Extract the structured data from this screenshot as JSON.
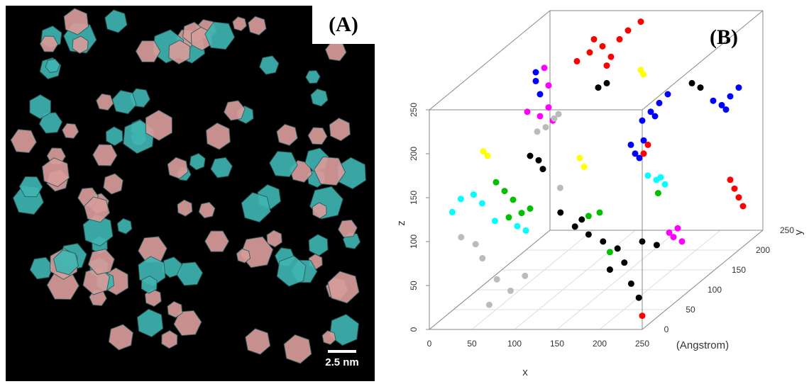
{
  "panel_a": {
    "label": "(A)",
    "scale_bar": "2.5 nm"
  },
  "panel_b": {
    "label": "(B)",
    "type": "scatter3d",
    "x_label": "x",
    "y_label": "y",
    "z_label": "z",
    "unit_label": "(Angstrom)",
    "xlim": [
      0,
      250
    ],
    "ylim": [
      0,
      250
    ],
    "zlim": [
      0,
      250
    ],
    "xticks": [
      0,
      50,
      100,
      150,
      200,
      250
    ],
    "yticks": [
      0,
      50,
      100,
      150,
      200,
      250
    ],
    "zticks": [
      0,
      50,
      100,
      150,
      200,
      250
    ],
    "clusters": [
      {
        "color": "#ff0000",
        "points": [
          [
            60,
            200,
            215
          ],
          [
            75,
            200,
            225
          ],
          [
            90,
            200,
            232
          ],
          [
            100,
            200,
            220
          ],
          [
            110,
            200,
            240
          ],
          [
            120,
            200,
            250
          ],
          [
            135,
            200,
            260
          ],
          [
            95,
            200,
            210
          ],
          [
            80,
            200,
            240
          ]
        ]
      },
      {
        "color": "#000000",
        "points": [
          [
            85,
            200,
            185
          ],
          [
            95,
            200,
            190
          ]
        ]
      },
      {
        "color": "#ffff00",
        "points": [
          [
            135,
            200,
            205
          ],
          [
            138,
            200,
            200
          ]
        ]
      },
      {
        "color": "#0000ff",
        "points": [
          [
            165,
            150,
            170
          ],
          [
            175,
            150,
            180
          ],
          [
            185,
            150,
            190
          ],
          [
            195,
            150,
            200
          ],
          [
            180,
            150,
            175
          ]
        ]
      },
      {
        "color": "#0000ff",
        "points": [
          [
            220,
            200,
            170
          ],
          [
            230,
            200,
            165
          ],
          [
            240,
            200,
            175
          ],
          [
            250,
            200,
            185
          ],
          [
            235,
            200,
            160
          ]
        ]
      },
      {
        "color": "#000000",
        "points": [
          [
            195,
            200,
            190
          ],
          [
            205,
            200,
            185
          ]
        ]
      },
      {
        "color": "#0000ff",
        "points": [
          [
            180,
            100,
            165
          ],
          [
            185,
            100,
            155
          ],
          [
            190,
            100,
            150
          ],
          [
            195,
            100,
            170
          ]
        ]
      },
      {
        "color": "#ff0000",
        "points": [
          [
            200,
            100,
            165
          ],
          [
            195,
            100,
            155
          ]
        ]
      },
      {
        "color": "#00ffff",
        "points": [
          [
            200,
            100,
            130
          ],
          [
            210,
            100,
            125
          ],
          [
            220,
            100,
            120
          ],
          [
            215,
            100,
            128
          ]
        ]
      },
      {
        "color": "#00c000",
        "points": [
          [
            212,
            100,
            110
          ]
        ]
      },
      {
        "color": "#ff0000",
        "points": [
          [
            240,
            200,
            80
          ],
          [
            245,
            200,
            70
          ],
          [
            250,
            200,
            60
          ],
          [
            255,
            200,
            50
          ]
        ]
      },
      {
        "color": "#ff00ff",
        "points": [
          [
            225,
            100,
            65
          ],
          [
            230,
            100,
            60
          ],
          [
            240,
            100,
            55
          ],
          [
            235,
            100,
            70
          ]
        ]
      },
      {
        "color": "#0000ff",
        "points": [
          [
            40,
            150,
            215
          ],
          [
            45,
            150,
            200
          ],
          [
            40,
            150,
            225
          ]
        ]
      },
      {
        "color": "#ff00ff",
        "points": [
          [
            50,
            150,
            230
          ],
          [
            55,
            150,
            210
          ],
          [
            30,
            150,
            180
          ],
          [
            45,
            150,
            175
          ],
          [
            55,
            150,
            185
          ],
          [
            60,
            150,
            170
          ]
        ]
      },
      {
        "color": "#bbbbbb",
        "points": [
          [
            70,
            100,
            180
          ],
          [
            80,
            100,
            185
          ],
          [
            90,
            100,
            195
          ],
          [
            95,
            100,
            200
          ]
        ]
      },
      {
        "color": "#ffff00",
        "points": [
          [
            35,
            50,
            180
          ],
          [
            40,
            50,
            175
          ]
        ]
      },
      {
        "color": "#000000",
        "points": [
          [
            90,
            50,
            175
          ],
          [
            100,
            50,
            170
          ],
          [
            105,
            50,
            160
          ]
        ]
      },
      {
        "color": "#ffff00",
        "points": [
          [
            120,
            100,
            150
          ],
          [
            125,
            100,
            140
          ]
        ]
      },
      {
        "color": "#bbbbbb",
        "points": [
          [
            97,
            100,
            116
          ]
        ]
      },
      {
        "color": "#00c000",
        "points": [
          [
            50,
            50,
            145
          ],
          [
            60,
            50,
            135
          ],
          [
            70,
            50,
            125
          ],
          [
            80,
            50,
            110
          ],
          [
            65,
            50,
            105
          ],
          [
            90,
            50,
            115
          ]
        ]
      },
      {
        "color": "#00ffff",
        "points": [
          [
            10,
            30,
            120
          ],
          [
            20,
            30,
            135
          ],
          [
            35,
            30,
            140
          ],
          [
            45,
            30,
            130
          ],
          [
            60,
            30,
            110
          ]
        ]
      },
      {
        "color": "#00ffff",
        "points": [
          [
            75,
            50,
            95
          ],
          [
            85,
            50,
            90
          ]
        ]
      },
      {
        "color": "#000000",
        "points": [
          [
            120,
            60,
            106
          ],
          [
            137,
            60,
            90
          ],
          [
            153,
            60,
            81
          ],
          [
            170,
            60,
            73
          ],
          [
            187,
            60,
            65
          ],
          [
            195,
            60,
            49
          ],
          [
            203,
            60,
            25
          ],
          [
            212,
            60,
            9
          ],
          [
            178,
            60,
            41
          ],
          [
            145,
            60,
            98
          ],
          [
            216,
            60,
            73
          ],
          [
            233,
            60,
            69
          ]
        ]
      },
      {
        "color": "#00c000",
        "points": [
          [
            153,
            60,
            102
          ],
          [
            166,
            60,
            106
          ],
          [
            178,
            60,
            61
          ]
        ]
      },
      {
        "color": "#bbbbbb",
        "points": [
          [
            26,
            20,
            96
          ],
          [
            43,
            20,
            88
          ],
          [
            51,
            20,
            72
          ],
          [
            68,
            20,
            48
          ],
          [
            84,
            20,
            35
          ],
          [
            59,
            20,
            19
          ],
          [
            101,
            20,
            52
          ]
        ]
      },
      {
        "color": "#ff0000",
        "points": [
          [
            233,
            30,
            2
          ]
        ]
      }
    ]
  }
}
